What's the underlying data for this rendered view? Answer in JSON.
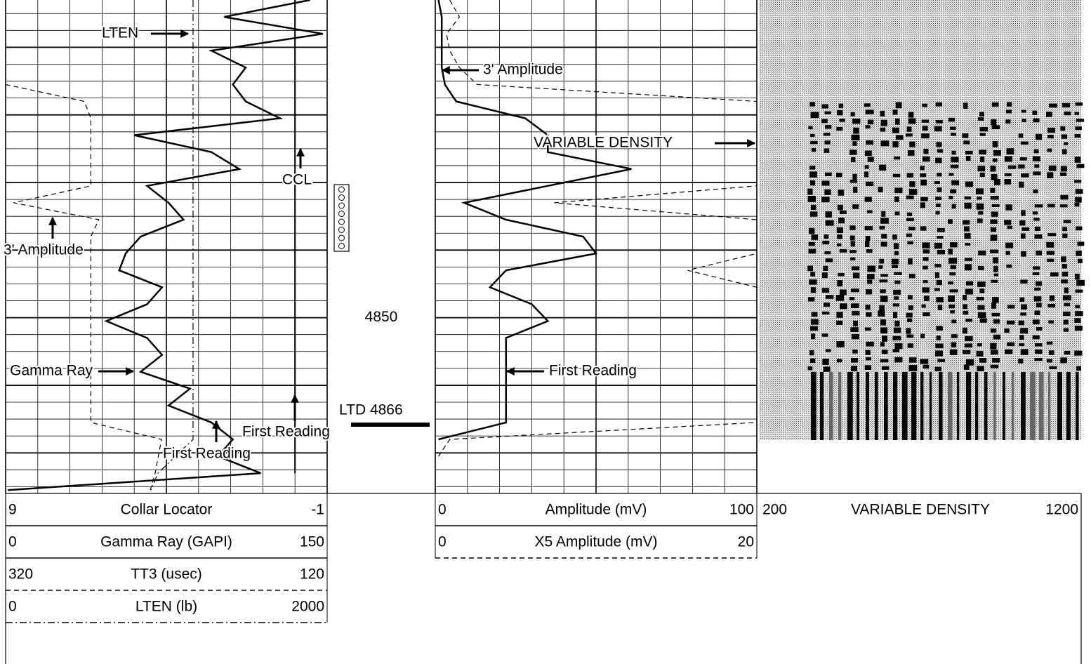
{
  "chart_data": {
    "type": "log",
    "ylim": [
      4803,
      4876
    ],
    "yticks": [
      4850
    ],
    "major_grid": [
      4810,
      4820,
      4830,
      4840,
      4850,
      4860,
      4870
    ],
    "minor_grid": [
      4805,
      4807.5,
      4810,
      4812.5,
      4815,
      4817.5,
      4820,
      4822.5,
      4825,
      4827.5,
      4830,
      4832.5,
      4835,
      4837.5,
      4840,
      4842.5,
      4845,
      4847.5,
      4850,
      4852.5,
      4855,
      4857.5,
      4860,
      4862.5,
      4865,
      4867.5,
      4870,
      4872.5,
      4875
    ],
    "depths": [
      4803,
      4805.5,
      4808,
      4810.5,
      4813,
      4815.5,
      4818,
      4820.5,
      4823,
      4825.5,
      4828,
      4830.5,
      4833,
      4835.5,
      4838,
      4840.5,
      4843,
      4845.5,
      4848,
      4850.5,
      4853,
      4855.5,
      4858,
      4860.5,
      4863,
      4865.5,
      4868,
      4870.5,
      4873,
      4875.5
    ],
    "tracks": [
      {
        "scales": [
          {
            "name": "Collar Locator",
            "xlim": [
              9,
              -1
            ],
            "line_style": "solid",
            "width": 2,
            "values": [
              0,
              0,
              0,
              0,
              0,
              0,
              0,
              0,
              0,
              0,
              0,
              0,
              0,
              0,
              0,
              0,
              0,
              0,
              0,
              0,
              0,
              0,
              0,
              0,
              0,
              0,
              0,
              0,
              0,
              null
            ]
          },
          {
            "name": "Gamma Ray (GAPI)",
            "xlim": [
              0,
              150
            ],
            "line_style": "solid",
            "width": 2.5,
            "values": [
              142,
              102,
              148,
              96,
              112,
              106,
              112,
              128,
              60,
              96,
              109,
              66,
              76,
              83,
              63,
              56,
              53,
              73,
              66,
              47,
              66,
              73,
              63,
              86,
              76,
              96,
              106,
              99,
              119,
              1
            ]
          },
          {
            "name": "TT3 (usec)",
            "xlim": [
              320,
              120
            ],
            "line_style": "dashed",
            "width": 1.2,
            "values": [
              320,
              320,
              320,
              320,
              320,
              320,
              271,
              267,
              267,
              267,
              267,
              267,
              315,
              262,
              267,
              267,
              267,
              267,
              267,
              267,
              267,
              267,
              267,
              267,
              267,
              267,
              223,
              225,
              227,
              230
            ]
          },
          {
            "name": "LTEN (lb)",
            "xlim": [
              0,
              2000
            ],
            "line_style": "dash-dot",
            "width": 1.2,
            "values": [
              1166,
              1166,
              1166,
              1166,
              1166,
              1166,
              1166,
              1166,
              1166,
              1166,
              1166,
              1166,
              1166,
              1166,
              1166,
              1166,
              1166,
              1166,
              1166,
              1166,
              1166,
              1166,
              1166,
              1166,
              1166,
              1166,
              1166,
              1057,
              948,
              904
            ]
          }
        ]
      },
      {
        "scales": [
          {
            "name": "Amplitude (mV)",
            "xlim": [
              0,
              100
            ],
            "line_style": "solid",
            "width": 2.5,
            "values": [
              1,
              2,
              2,
              2,
              2,
              3,
              6.5,
              28,
              35,
              35,
              61,
              35,
              9,
              22,
              46,
              50,
              22,
              17,
              30,
              35,
              22,
              22,
              22,
              22,
              22,
              22,
              1,
              null,
              null,
              null
            ]
          },
          {
            "name": "X5 Amplitude (mV)",
            "xlim": [
              0,
              20
            ],
            "line_style": "dashed",
            "width": 1.2,
            "values": [
              0.9,
              1.5,
              0.7,
              0.9,
              1.5,
              2.6,
              20,
              20,
              20,
              20,
              20,
              20,
              7.4,
              20,
              20,
              20,
              15.7,
              20,
              20,
              20,
              20,
              20,
              20,
              20,
              20,
              20,
              0.9,
              0.2,
              null,
              null
            ]
          }
        ]
      },
      {
        "scales": [
          {
            "name": "VARIABLE DENSITY",
            "xlim": [
              200,
              1200
            ]
          }
        ]
      }
    ],
    "annotations": [
      "LTEN",
      "3' Amplitude",
      "VARIABLE DENSITY",
      "CCL",
      "3' Amplitude",
      "Gamma Ray",
      "First Reading",
      "First Reading",
      "First Reading",
      "LTD 4866"
    ]
  }
}
